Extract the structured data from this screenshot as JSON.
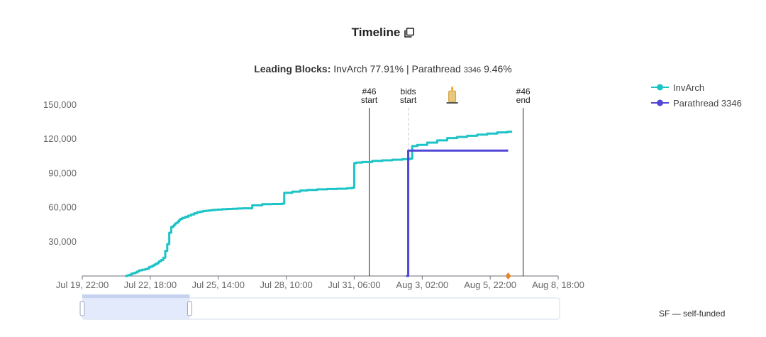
{
  "header": {
    "title": "Timeline",
    "copy_icon": "copy-icon"
  },
  "subtitle": {
    "prefix": "Leading Blocks:",
    "first_name": "InvArch",
    "first_pct": "77.91%",
    "separator": "|",
    "second_name_main": "Parathread",
    "second_name_id": "3346",
    "second_pct": "9.46%"
  },
  "footnote": "SF — self-funded",
  "colors": {
    "invarch": "#1cc3c7",
    "parathread": "#5246d6",
    "marker": "#e3862a",
    "zoom_fill": "#dfe8fb"
  },
  "chart_data": {
    "type": "line",
    "title": "Timeline",
    "x_tick_labels": [
      "Jul 19, 22:00",
      "Jul 22, 18:00",
      "Jul 25, 14:00",
      "Jul 28, 10:00",
      "Jul 31, 06:00",
      "Aug 3, 02:00",
      "Aug 5, 22:00",
      "Aug 8, 18:00"
    ],
    "x_tick_hours": [
      0,
      68,
      136,
      204,
      272,
      340,
      408,
      476
    ],
    "x_range_hours": [
      0,
      476
    ],
    "x_unit": "hours since Jul 19, 22:00",
    "y_tick_labels": [
      "30,000",
      "60,000",
      "90,000",
      "120,000",
      "150,000"
    ],
    "y_ticks": [
      30000,
      60000,
      90000,
      120000,
      150000
    ],
    "ylim": [
      0,
      155000
    ],
    "grid": false,
    "legend_position": "top-right",
    "series": [
      {
        "name": "InvArch",
        "step": true,
        "x": [
          43,
          45,
          47,
          49,
          51,
          53,
          55,
          57,
          60,
          63,
          65,
          67,
          70,
          72,
          74,
          76,
          77,
          79,
          81,
          83,
          85,
          87,
          89,
          91,
          92,
          93,
          94,
          95,
          96,
          97,
          98,
          100,
          103,
          106,
          109,
          112,
          115,
          118,
          121,
          124,
          127,
          130,
          133,
          136,
          140,
          145,
          150,
          155,
          160,
          170,
          180,
          190,
          200,
          202,
          210,
          218,
          220,
          225,
          235,
          245,
          255,
          265,
          270,
          272,
          274,
          280,
          290,
          300,
          310,
          320,
          328,
          330,
          335,
          345,
          355,
          365,
          375,
          385,
          395,
          405,
          415,
          425
        ],
        "y": [
          0,
          500,
          1000,
          2000,
          2500,
          3000,
          4000,
          5000,
          5500,
          6000,
          6500,
          8000,
          9000,
          10000,
          11000,
          12000,
          13000,
          14000,
          16000,
          22000,
          28000,
          38000,
          43000,
          44000,
          45000,
          46000,
          46500,
          47000,
          48000,
          49000,
          50000,
          51000,
          52000,
          53000,
          54000,
          55000,
          56000,
          56500,
          57000,
          57300,
          57600,
          57900,
          58100,
          58300,
          58600,
          58800,
          59000,
          59200,
          59400,
          62000,
          63000,
          63200,
          63500,
          73000,
          74000,
          75000,
          75000,
          75500,
          76000,
          76300,
          76600,
          77000,
          77500,
          99000,
          99500,
          100000,
          101000,
          101500,
          102000,
          102500,
          103000,
          114000,
          115000,
          117000,
          119000,
          121000,
          122000,
          123000,
          124000,
          125000,
          126000,
          126500
        ]
      },
      {
        "name": "Parathread 3346",
        "step": true,
        "x": [
          324,
          326,
          426
        ],
        "y": [
          0,
          110000,
          110000
        ]
      }
    ],
    "annotations": [
      {
        "label": "#46",
        "sublabel": "start",
        "x": 287,
        "style": "solid"
      },
      {
        "label": "bids",
        "sublabel": "start",
        "x": 326,
        "style": "dashed"
      },
      {
        "label": "#46",
        "sublabel": "end",
        "x": 441,
        "style": "solid"
      }
    ],
    "candle_marker": {
      "x": 370,
      "icon": "candle-icon"
    },
    "point_markers": [
      {
        "x": 426,
        "y": 0,
        "shape": "diamond"
      }
    ],
    "zoom_slider": {
      "start_fraction": 0.0,
      "end_fraction": 0.225
    }
  }
}
